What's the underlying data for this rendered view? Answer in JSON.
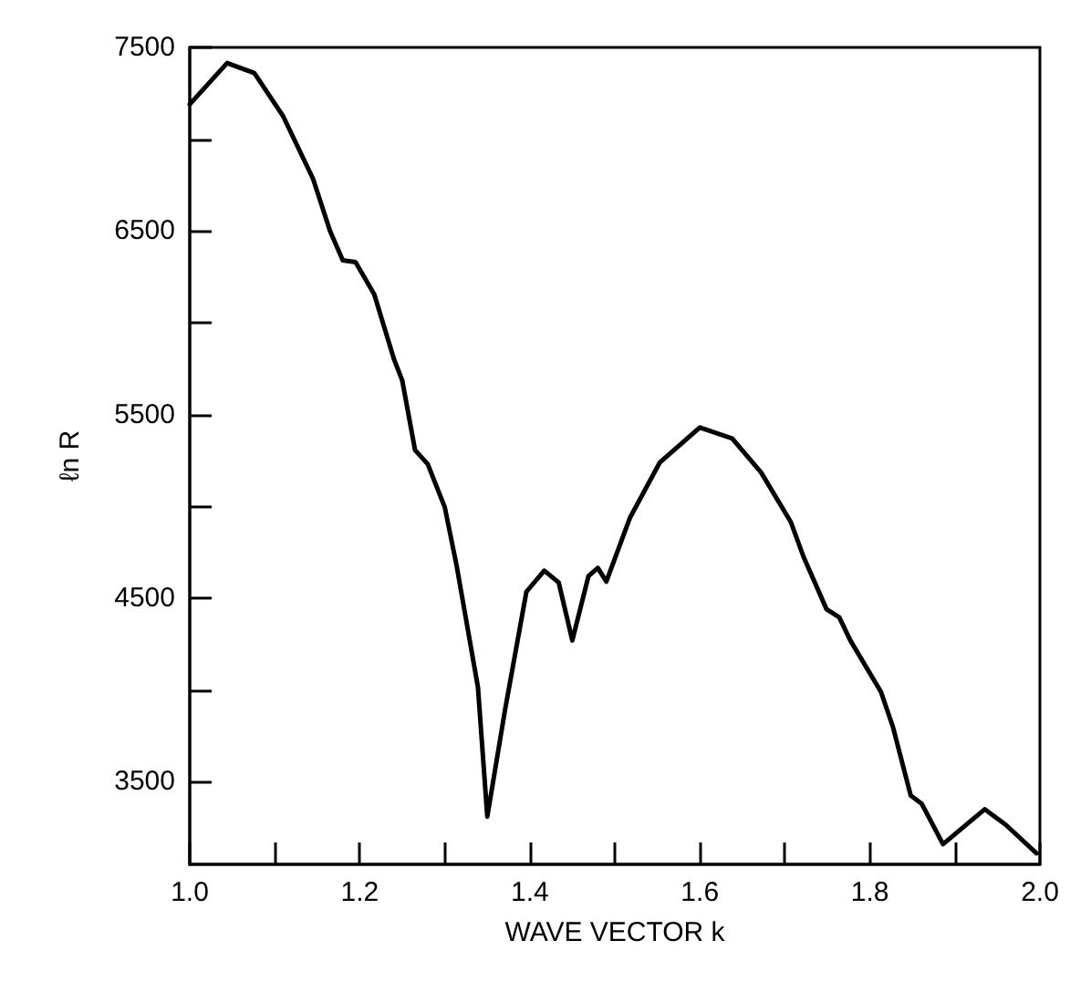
{
  "chart_data": {
    "type": "line",
    "xlabel": "WAVE VECTOR k",
    "ylabel": "ℓn R",
    "x": [
      1.0,
      1.044,
      1.076,
      1.11,
      1.145,
      1.165,
      1.18,
      1.195,
      1.217,
      1.24,
      1.25,
      1.265,
      1.28,
      1.3,
      1.314,
      1.339,
      1.35,
      1.371,
      1.396,
      1.417,
      1.434,
      1.45,
      1.469,
      1.48,
      1.49,
      1.518,
      1.553,
      1.6,
      1.638,
      1.672,
      1.707,
      1.722,
      1.749,
      1.764,
      1.777,
      1.813,
      1.827,
      1.848,
      1.861,
      1.886,
      1.935,
      1.96,
      1.996
    ],
    "series": [
      {
        "color": "#000000",
        "values": [
          7190,
          7415,
          7360,
          7124,
          6785,
          6500,
          6340,
          6330,
          6155,
          5805,
          5685,
          5307,
          5230,
          4995,
          4675,
          4015,
          3310,
          3895,
          4535,
          4650,
          4585,
          4270,
          4620,
          4665,
          4590,
          4940,
          5240,
          5430,
          5370,
          5185,
          4915,
          4725,
          4440,
          4395,
          4270,
          3990,
          3800,
          3425,
          3380,
          3160,
          3350,
          3265,
          3110
        ]
      }
    ],
    "xlim": [
      1.0,
      2.0
    ],
    "xticks": [
      {
        "value": 1.0,
        "label": "1.0"
      },
      {
        "value": 1.1,
        "label": null
      },
      {
        "value": 1.2,
        "label": "1.2"
      },
      {
        "value": 1.3,
        "label": null
      },
      {
        "value": 1.4,
        "label": "1.4"
      },
      {
        "value": 1.5,
        "label": null
      },
      {
        "value": 1.6,
        "label": "1.6"
      },
      {
        "value": 1.7,
        "label": null
      },
      {
        "value": 1.8,
        "label": "1.8"
      },
      {
        "value": 1.9,
        "label": null
      },
      {
        "value": 2.0,
        "label": "2.0"
      }
    ],
    "ylim": [
      3050,
      7500
    ],
    "yticks": [
      3500,
      {
        "value": 4000,
        "label": null
      },
      4500,
      {
        "value": 5000,
        "label": null
      },
      5500,
      {
        "value": 6000,
        "label": null
      },
      6500,
      {
        "value": 7000,
        "label": null
      },
      7500
    ],
    "grid": false,
    "marker": "none",
    "line_style": "solid"
  }
}
